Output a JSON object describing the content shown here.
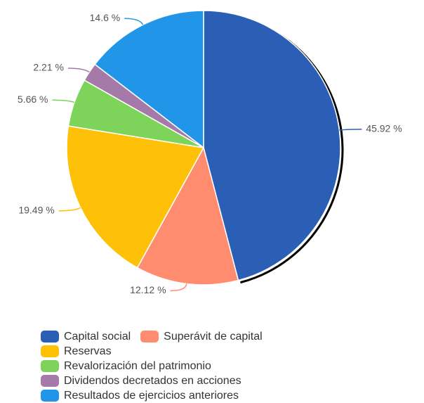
{
  "chart_data": {
    "type": "pie",
    "categories": [
      "Capital social",
      "Superávit de capital",
      "Reservas",
      "Revalorización del patrimonio",
      "Dividendos decretados en acciones",
      "Resultados de ejercicios anteriores"
    ],
    "values": [
      45.92,
      12.12,
      19.49,
      5.66,
      2.21,
      14.6
    ],
    "value_labels": [
      "45.92 %",
      "12.12 %",
      "19.49 %",
      "5.66 %",
      "2.21 %",
      "14.6 %"
    ],
    "colors": [
      "#2b5fb5",
      "#ff8c6e",
      "#ffc107",
      "#7ed35a",
      "#a579a8",
      "#2196e8"
    ]
  }
}
